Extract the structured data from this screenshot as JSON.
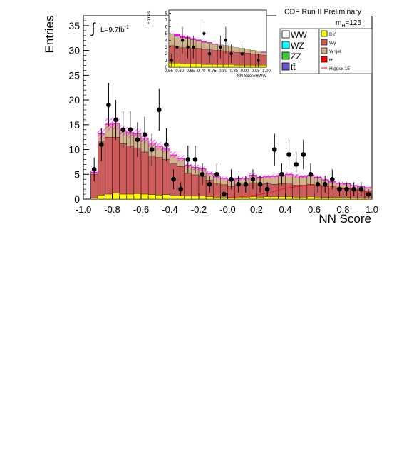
{
  "chart_data": {
    "type": "bar",
    "title": "CDF Run II Preliminary",
    "xlabel": "NN Score",
    "ylabel": "Entries",
    "xlim": [
      -1.0,
      1.0
    ],
    "ylim": [
      0,
      37
    ],
    "x_ticks": [
      "-1.0",
      "-0.8",
      "-0.6",
      "-0.4",
      "-0.2",
      "-0.0",
      "0.2",
      "0.4",
      "0.6",
      "0.8",
      "1.0"
    ],
    "y_ticks": [
      "0",
      "5",
      "10",
      "15",
      "20",
      "25",
      "30",
      "35"
    ],
    "luminosity_label": "L=9.7fb",
    "luminosity_superscript": "-1",
    "mass_label": "m",
    "mass_subscript": "H",
    "mass_value": "=125",
    "bin_edges_start": -0.95,
    "bin_width": 0.05,
    "stack_order": [
      "H",
      "DY",
      "Wγ",
      "W+jet"
    ],
    "series": [
      {
        "name": "H",
        "color": "#ff0000",
        "values": [
          0,
          0,
          0,
          0,
          0,
          0,
          0,
          0,
          0,
          0,
          0,
          0,
          0,
          0,
          0,
          0,
          0,
          0,
          0,
          0,
          0,
          0,
          0,
          0,
          0,
          0,
          0,
          0,
          0,
          0,
          0,
          0,
          0,
          0,
          0,
          0,
          0,
          0,
          0
        ]
      },
      {
        "name": "DY",
        "color": "#ffff00",
        "values": [
          0.2,
          0.8,
          1.0,
          1.2,
          1.0,
          1.0,
          1.1,
          1.0,
          0.9,
          0.8,
          0.9,
          0.7,
          0.7,
          0.6,
          0.6,
          0.6,
          0.5,
          0.4,
          0.4,
          0.3,
          0.4,
          0.4,
          0.5,
          0.4,
          0.5,
          0.5,
          0.5,
          0.5,
          0.4,
          0.4,
          0.5,
          0.4,
          0.3,
          0.3,
          0.3,
          0.3,
          0.2,
          0.2,
          0.2
        ]
      },
      {
        "name": "Wγ",
        "color": "#cd5c5c",
        "values": [
          4.8,
          10.9,
          11.5,
          11.3,
          10.2,
          9.7,
          9.2,
          8.5,
          7.8,
          7.6,
          7.1,
          6.4,
          5.9,
          4.6,
          4.3,
          4.0,
          3.3,
          2.8,
          2.5,
          2.3,
          2.5,
          2.5,
          2.8,
          2.6,
          2.6,
          2.5,
          2.6,
          2.7,
          2.4,
          2.4,
          2.5,
          2.4,
          2.2,
          2.0,
          1.8,
          1.8,
          1.7,
          1.6,
          1.5
        ]
      },
      {
        "name": "W+jet",
        "color": "#d2b48c",
        "values": [
          0.4,
          1.5,
          2.6,
          2.8,
          2.6,
          2.7,
          2.9,
          2.8,
          2.6,
          2.3,
          2.1,
          1.8,
          1.6,
          1.6,
          1.5,
          1.5,
          1.4,
          1.3,
          1.3,
          1.2,
          1.2,
          1.3,
          1.5,
          1.4,
          1.4,
          1.6,
          1.7,
          1.8,
          1.9,
          1.7,
          1.8,
          1.6,
          1.4,
          1.2,
          1.1,
          1.0,
          0.8,
          0.7,
          0.6
        ]
      }
    ],
    "uncertainty_band": {
      "color": "#ff00ff",
      "relative": 0.08
    },
    "higgs_x15_line": {
      "name": "Higgsx 15",
      "color": "#ff0000",
      "x": [
        0.0,
        0.1,
        0.2,
        0.3,
        0.4,
        0.5,
        0.6,
        0.7,
        0.8,
        0.9,
        1.0
      ],
      "y": [
        0.2,
        0.5,
        0.8,
        1.4,
        2.2,
        2.6,
        2.8,
        2.6,
        2.3,
        1.8,
        1.2
      ]
    },
    "observed": [
      {
        "x": -0.925,
        "y": 6,
        "err": 2.4
      },
      {
        "x": -0.875,
        "y": 11,
        "err": 3.3
      },
      {
        "x": -0.825,
        "y": 19,
        "err": 4.4
      },
      {
        "x": -0.775,
        "y": 16,
        "err": 4.0
      },
      {
        "x": -0.725,
        "y": 14,
        "err": 3.7
      },
      {
        "x": -0.675,
        "y": 14,
        "err": 3.7
      },
      {
        "x": -0.625,
        "y": 12,
        "err": 3.5
      },
      {
        "x": -0.575,
        "y": 13,
        "err": 3.6
      },
      {
        "x": -0.525,
        "y": 10,
        "err": 3.2
      },
      {
        "x": -0.475,
        "y": 18,
        "err": 4.2
      },
      {
        "x": -0.425,
        "y": 11,
        "err": 3.3
      },
      {
        "x": -0.375,
        "y": 4,
        "err": 2.0
      },
      {
        "x": -0.325,
        "y": 2,
        "err": 1.4
      },
      {
        "x": -0.275,
        "y": 8,
        "err": 2.8
      },
      {
        "x": -0.225,
        "y": 8,
        "err": 2.8
      },
      {
        "x": -0.175,
        "y": 5,
        "err": 2.2
      },
      {
        "x": -0.125,
        "y": 3,
        "err": 1.7
      },
      {
        "x": -0.075,
        "y": 5,
        "err": 2.2
      },
      {
        "x": -0.025,
        "y": 1,
        "err": 1.0
      },
      {
        "x": 0.025,
        "y": 4,
        "err": 2.0
      },
      {
        "x": 0.075,
        "y": 3,
        "err": 1.7
      },
      {
        "x": 0.125,
        "y": 3,
        "err": 1.7
      },
      {
        "x": 0.175,
        "y": 4,
        "err": 2.0
      },
      {
        "x": 0.225,
        "y": 3,
        "err": 1.7
      },
      {
        "x": 0.275,
        "y": 2,
        "err": 1.4
      },
      {
        "x": 0.325,
        "y": 10,
        "err": 3.2
      },
      {
        "x": 0.375,
        "y": 5,
        "err": 2.2
      },
      {
        "x": 0.425,
        "y": 9,
        "err": 3.0
      },
      {
        "x": 0.475,
        "y": 7,
        "err": 2.6
      },
      {
        "x": 0.525,
        "y": 9,
        "err": 3.0
      },
      {
        "x": 0.575,
        "y": 5,
        "err": 2.2
      },
      {
        "x": 0.625,
        "y": 3,
        "err": 1.7
      },
      {
        "x": 0.675,
        "y": 3,
        "err": 1.7
      },
      {
        "x": 0.725,
        "y": 4,
        "err": 2.0
      },
      {
        "x": 0.775,
        "y": 2,
        "err": 1.4
      },
      {
        "x": 0.825,
        "y": 2,
        "err": 1.4
      },
      {
        "x": 0.875,
        "y": 2,
        "err": 1.4
      },
      {
        "x": 0.925,
        "y": 2,
        "err": 1.4
      },
      {
        "x": 0.975,
        "y": 1,
        "err": 1.0
      }
    ],
    "legend_placement": "top-right",
    "legend": {
      "left": [
        {
          "label": "WW",
          "color": "#ffffff"
        },
        {
          "label": "WZ",
          "color": "#00ffff"
        },
        {
          "label": "ZZ",
          "color": "#33cc33"
        },
        {
          "label": "tt̄",
          "color": "#6655cc"
        }
      ],
      "right": [
        {
          "label": "DY",
          "color": "#ffff00",
          "kind": "box"
        },
        {
          "label": "Wγ",
          "color": "#cd5c5c",
          "kind": "box"
        },
        {
          "label": "W+jet",
          "color": "#d2b48c",
          "kind": "box"
        },
        {
          "label": "H",
          "color": "#ff0000",
          "kind": "box"
        },
        {
          "label": "Higgsx 15",
          "color": "#ff0000",
          "kind": "line"
        }
      ]
    },
    "inset": {
      "type": "bar",
      "xlabel": "NN ScoreHWW",
      "ylabel": "Entries",
      "xlim": [
        0.55,
        1.0
      ],
      "ylim": [
        0,
        8.5
      ],
      "x_ticks": [
        "0.55",
        "0.60",
        "0.65",
        "0.70",
        "0.75",
        "0.80",
        "0.85",
        "0.90",
        "0.95",
        "1.00"
      ],
      "y_ticks": [
        "0",
        "1",
        "2",
        "3",
        "4",
        "5",
        "6",
        "7",
        "8"
      ],
      "bin_edges_start": 0.55,
      "bin_width": 0.025,
      "series": [
        {
          "name": "DY",
          "color": "#ffff00",
          "values": [
            0.6,
            0.6,
            0.5,
            0.5,
            0.5,
            0.5,
            0.4,
            0.4,
            0.4,
            0.4,
            0.4,
            0.4,
            0.3,
            0.3,
            0.3,
            0.3,
            0.3,
            0.3
          ]
        },
        {
          "name": "Wγ",
          "color": "#cd5c5c",
          "values": [
            2.6,
            2.5,
            2.4,
            2.4,
            2.3,
            2.3,
            2.2,
            2.2,
            2.1,
            2.1,
            2.0,
            2.0,
            1.9,
            1.9,
            1.8,
            1.7,
            1.6,
            1.5
          ]
        },
        {
          "name": "W+jet",
          "color": "#d2b48c",
          "values": [
            1.7,
            1.5,
            1.5,
            1.4,
            1.3,
            1.1,
            1.1,
            1.0,
            0.9,
            0.8,
            0.8,
            0.7,
            0.7,
            0.6,
            0.6,
            0.5,
            0.5,
            0.4
          ]
        }
      ],
      "signal_band_color": "#ff00ff",
      "signal_top": [
        5.0,
        4.9,
        4.7,
        4.5,
        4.3,
        4.1,
        3.9,
        3.7,
        3.5,
        3.3,
        3.2,
        3.0,
        2.8,
        2.7,
        2.6,
        2.5,
        2.4,
        2.3
      ],
      "observed": [
        {
          "x": 0.5625,
          "y": 1,
          "err": 1.0
        },
        {
          "x": 0.5875,
          "y": 3,
          "err": 1.7
        },
        {
          "x": 0.6125,
          "y": 4,
          "err": 2.0
        },
        {
          "x": 0.6375,
          "y": 3,
          "err": 1.7
        },
        {
          "x": 0.6625,
          "y": 3,
          "err": 1.7
        },
        {
          "x": 0.7125,
          "y": 5,
          "err": 2.2
        },
        {
          "x": 0.7375,
          "y": 2,
          "err": 1.4
        },
        {
          "x": 0.7875,
          "y": 3,
          "err": 1.7
        },
        {
          "x": 0.8125,
          "y": 4,
          "err": 2.0
        },
        {
          "x": 0.8375,
          "y": 2,
          "err": 1.4
        },
        {
          "x": 0.8875,
          "y": 2,
          "err": 1.4
        },
        {
          "x": 0.9625,
          "y": 1,
          "err": 1.0
        }
      ]
    }
  }
}
